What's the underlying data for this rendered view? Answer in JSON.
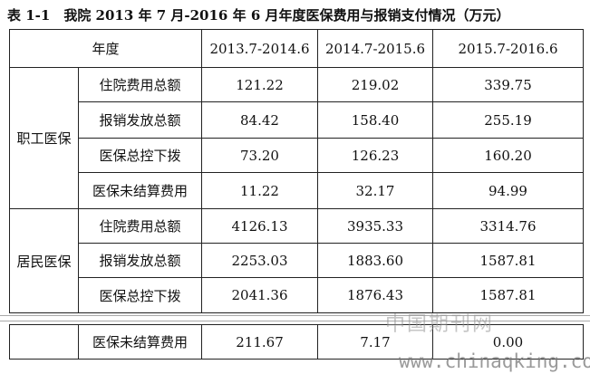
{
  "title": "表 1-1　我院 2013 年 7 月-2016 年 6 月年度医保费用与报销支付情况（万元）",
  "table": {
    "header": [
      "年度",
      "2013.7-2014.6",
      "2014.7-2015.6",
      "2015.7-2016.6"
    ],
    "groups": [
      {
        "name": "职工医保",
        "rows": [
          [
            "住院费用总额",
            "121.22",
            "219.02",
            "339.75"
          ],
          [
            "报销发放总额",
            "84.42",
            "158.40",
            "255.19"
          ],
          [
            "医保总控下拨",
            "73.20",
            "126.23",
            "160.20"
          ],
          [
            "医保未结算费用",
            "11.22",
            "32.17",
            "94.99"
          ]
        ]
      },
      {
        "name": "居民医保",
        "rows": [
          [
            "住院费用总额",
            "4126.13",
            "3935.33",
            "3314.76"
          ],
          [
            "报销发放总额",
            "2253.03",
            "1883.60",
            "1587.81"
          ],
          [
            "医保总控下拨",
            "2041.36",
            "1876.43",
            "1587.81"
          ]
        ]
      }
    ],
    "last_row": [
      "医保未结算费用",
      "211.67",
      "7.17",
      "0.00"
    ]
  },
  "watermark": {
    "logo": "中国期刊网",
    "url": "www.chinaqking.com"
  }
}
